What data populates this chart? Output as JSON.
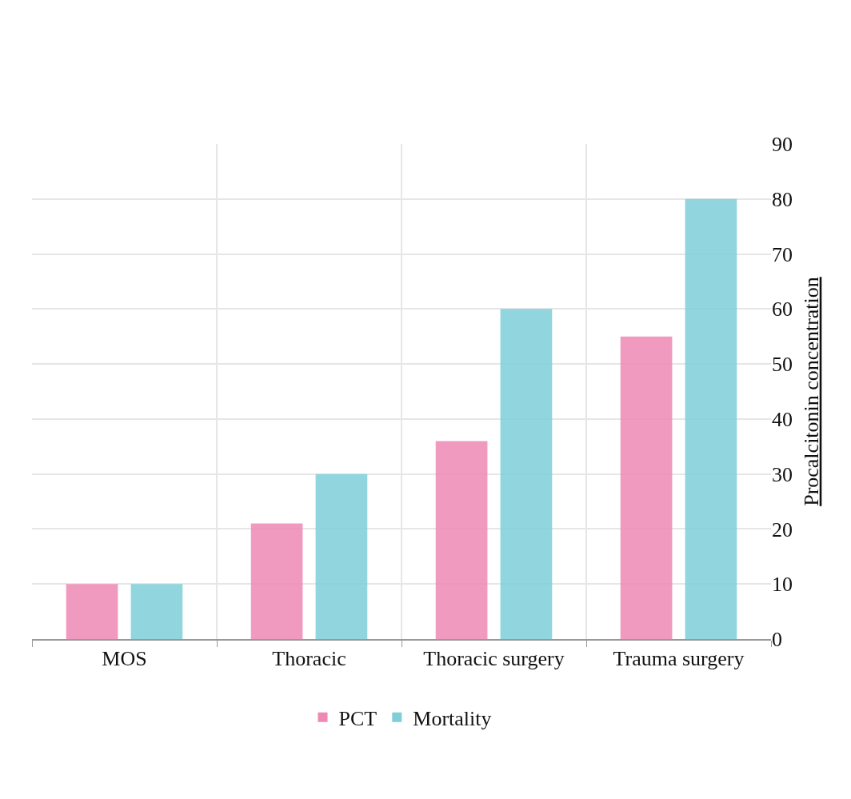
{
  "chart_data": {
    "type": "bar",
    "categories": [
      "MOS",
      "Thoracic",
      "Thoracic surgery",
      "Trauma surgery"
    ],
    "series": [
      {
        "name": "PCT",
        "color": "#ee88b4",
        "values": [
          10,
          21,
          36,
          55
        ]
      },
      {
        "name": "Mortality",
        "color": "#7ecfd8",
        "values": [
          10,
          30,
          60,
          80
        ]
      }
    ],
    "ylabel": "Procalcitonin concentration",
    "ylim": [
      0,
      90
    ],
    "yticks": [
      0,
      10,
      20,
      30,
      40,
      50,
      60,
      70,
      80,
      90
    ],
    "grid": true,
    "legend": "bottom"
  }
}
